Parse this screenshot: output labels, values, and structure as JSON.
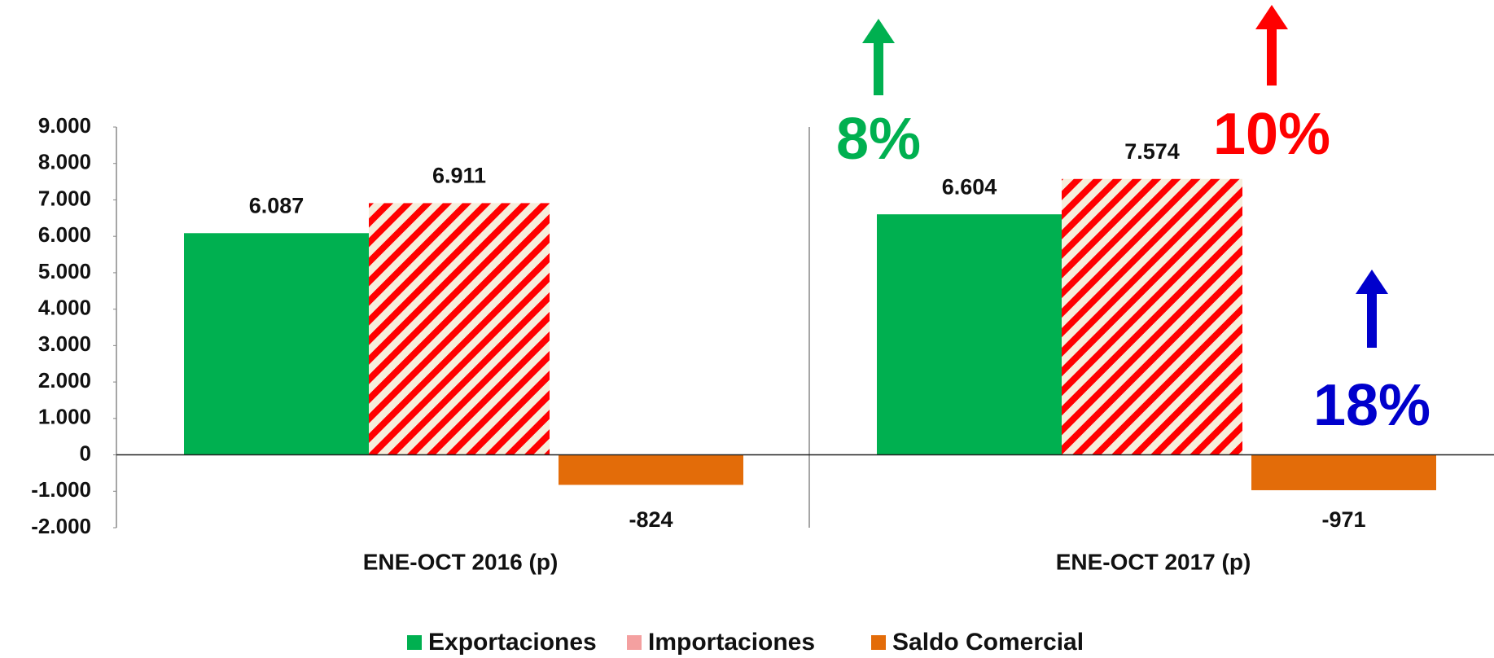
{
  "chart_data": {
    "type": "bar",
    "categories": [
      "ENE-OCT 2016 (p)",
      "ENE-OCT 2017 (p)"
    ],
    "series": [
      {
        "name": "Exportaciones",
        "color": "#00b050",
        "values": [
          6087,
          6604
        ],
        "value_labels": [
          "6.087",
          "6.604"
        ]
      },
      {
        "name": "Importaciones",
        "color": "#ff0000",
        "pattern": "hatch",
        "values": [
          6911,
          7574
        ],
        "value_labels": [
          "6.911",
          "7.574"
        ]
      },
      {
        "name": "Saldo Comercial",
        "color": "#e36c09",
        "values": [
          -824,
          -971
        ],
        "value_labels": [
          "-824",
          "-971"
        ]
      }
    ],
    "ylim": [
      -2000,
      9000
    ],
    "yticks": [
      {
        "value": -2000,
        "label": "-2.000"
      },
      {
        "value": -1000,
        "label": "-1.000"
      },
      0,
      {
        "value": 1000,
        "label": "1.000"
      },
      {
        "value": 2000,
        "label": "2.000"
      },
      {
        "value": 3000,
        "label": "3.000"
      },
      {
        "value": 4000,
        "label": "4.000"
      },
      {
        "value": 5000,
        "label": "5.000"
      },
      {
        "value": 6000,
        "label": "6.000"
      },
      {
        "value": 7000,
        "label": "7.000"
      },
      {
        "value": 8000,
        "label": "8.000"
      },
      {
        "value": 9000,
        "label": "9.000"
      }
    ],
    "legend": "bottom",
    "annotations": [
      {
        "text": "8%",
        "color": "#00b050"
      },
      {
        "text": "10%",
        "color": "#ff0000"
      },
      {
        "text": "18%",
        "color": "#0000cc"
      }
    ]
  }
}
